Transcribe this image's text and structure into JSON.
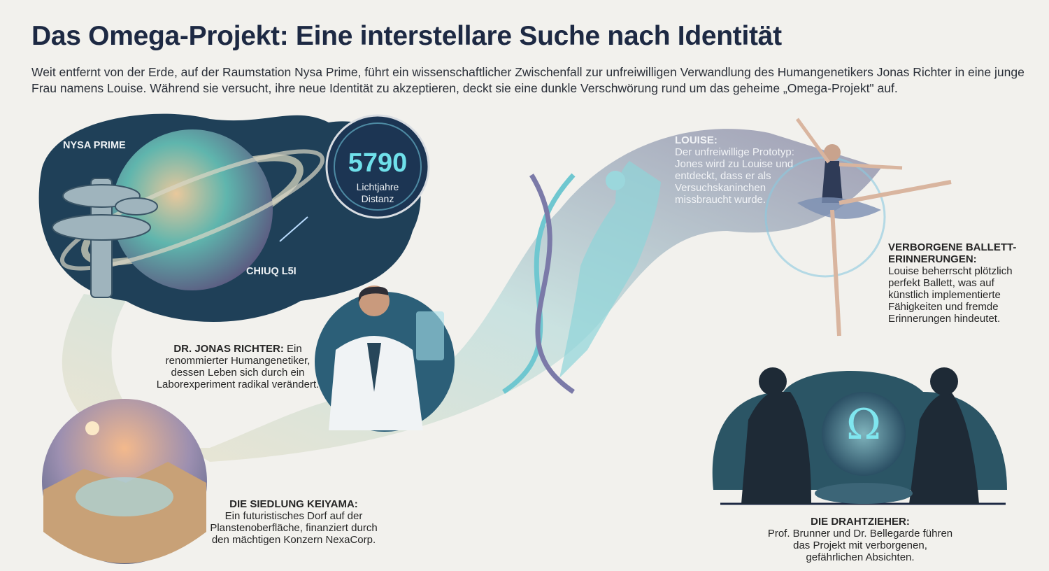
{
  "title": "Das Omega-Projekt: Eine interstellare Suche nach Identität",
  "intro": "Weit entfernt von der Erde, auf der Raumstation Nysa Prime, führt ein wissenschaftlicher Zwischenfall zur unfreiwilligen Verwandlung des Humangenetikers Jonas Richter in eine junge Frau namens Louise. Während sie versucht, ihre neue Identität zu akzeptieren, deckt sie eine dunkle Verschwörung rund um das geheime „Omega-Projekt\" auf.",
  "space": {
    "station_label": "NYSA PRIME",
    "planet_label": "CHIUQ L5I",
    "distance_value": "5790",
    "distance_unit_line1": "Lichtjahre",
    "distance_unit_line2": "Distanz"
  },
  "scientist": {
    "heading": "DR. JONAS RICHTER:",
    "text": " Ein renommierter Humangenetiker, dessen Leben sich durch ein Laborexperiment radikal verändert."
  },
  "settlement": {
    "heading": "DIE SIEDLUNG KEIYAMA:",
    "text": "Ein futuristisches Dorf auf der Planstenoberfläche, finanziert durch den mächtigen Konzern NexaCorp."
  },
  "louise": {
    "heading": "LOUISE:",
    "text": "Der unfreiwillige Prototyp: Jones wird zu Louise und entdeckt, dass er als Versuchskaninchen missbraucht wurde."
  },
  "ballet": {
    "heading": "VERBORGENE BALLETT-ERINNERUNGEN:",
    "text": "Louise beherrscht plötzlich perfekt Ballett, was auf künstlich implementierte Fähigkeiten und fremde Erinnerungen hindeutet."
  },
  "masterminds": {
    "heading": "DIE DRAHTZIEHER:",
    "text": "Prof. Brunner und Dr. Bellegarde führen das Projekt mit verborgenen, gefährlichen Absichten.",
    "symbol": "Ω"
  },
  "colors": {
    "title": "#1d2943",
    "space": "#1c3550",
    "accent": "#6fe0ea",
    "path": "#e7d9b8"
  }
}
